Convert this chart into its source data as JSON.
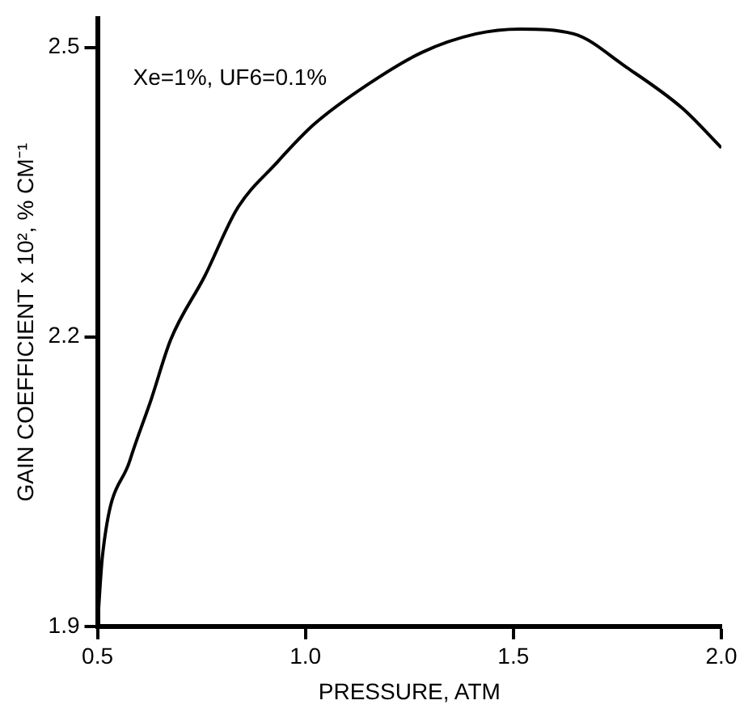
{
  "chart_data": {
    "type": "line",
    "xlabel": "PRESSURE, ATM",
    "ylabel": "GAIN COEFFICIENT x 10², % CM⁻¹",
    "annotations": [
      "Xe=1%, UF6=0.1%"
    ],
    "x": [
      0.5,
      0.512,
      0.578,
      0.629,
      0.676,
      0.758,
      0.836,
      0.93,
      1.02,
      1.148,
      1.281,
      1.41,
      1.516,
      1.645,
      1.773,
      1.906,
      2.0
    ],
    "series": [
      {
        "color": "#000000",
        "values": [
          1.9,
          1.973,
          2.072,
          2.135,
          2.197,
          2.263,
          2.333,
          2.38,
          2.42,
          2.461,
          2.495,
          2.514,
          2.519,
          2.514,
          2.479,
          2.437,
          2.396
        ]
      }
    ],
    "xlim": [
      0.5,
      2.0
    ],
    "xticks": [
      {
        "value": 0.5,
        "label": "0.5"
      },
      {
        "value": 1.0,
        "label": "1.0"
      },
      {
        "value": 1.5,
        "label": "1.5"
      },
      {
        "value": 2.0,
        "label": "2.0"
      }
    ],
    "ylim": [
      1.9,
      2.53
    ],
    "yticks": [
      1.9,
      2.2,
      2.5
    ],
    "grid": false,
    "legend": false,
    "marker": "none",
    "line_style": "solid"
  }
}
